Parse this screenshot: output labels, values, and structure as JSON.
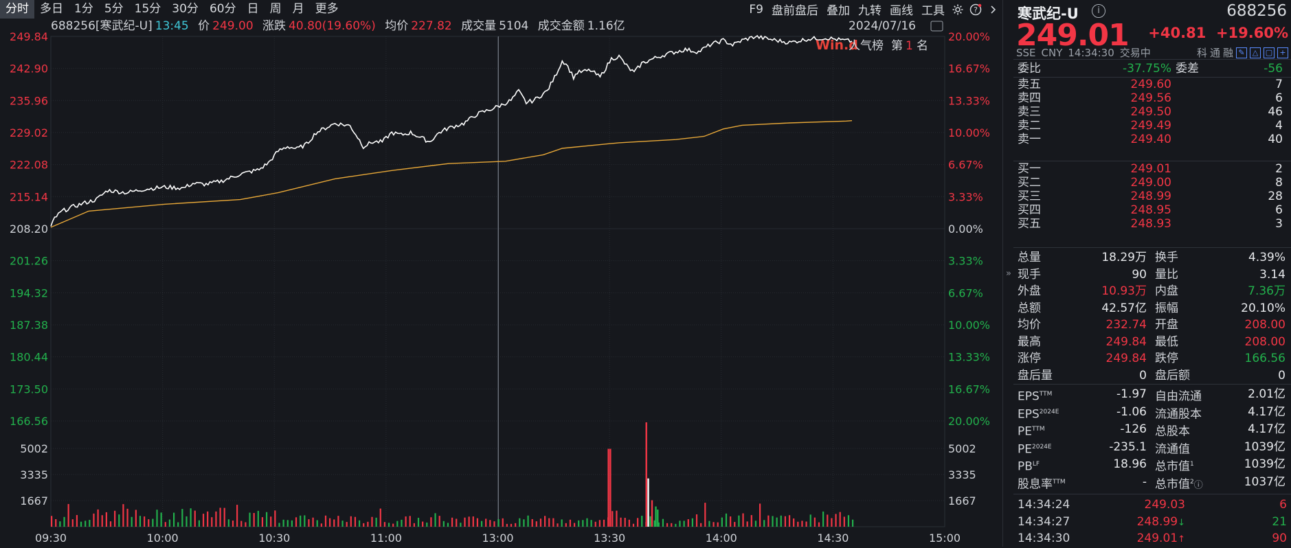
{
  "colors": {
    "up": "#f23645",
    "down": "#22b14c",
    "price_line": "#ffffff",
    "avg_line": "#e8a838",
    "grid": "#262a31",
    "bg": "#16181d"
  },
  "toolbar": {
    "tabs": [
      "分时",
      "多日",
      "1分",
      "5分",
      "15分",
      "30分",
      "60分",
      "日",
      "周",
      "月",
      "更多"
    ],
    "active_tab": "分时",
    "tools": [
      "F9",
      "盘前盘后",
      "叠加",
      "九转",
      "画线",
      "工具"
    ],
    "icons": [
      "gear-icon",
      "help-icon",
      "chevron-right-icon"
    ]
  },
  "info_bar": {
    "code_name": "688256[寒武纪-U]",
    "time": "13:45",
    "price_label": "价",
    "price": "249.00",
    "change_label": "涨跌",
    "change": "40.80(19.60%)",
    "avg_label": "均价",
    "avg": "227.82",
    "vol_label": "成交量",
    "vol": "5104",
    "amount_label": "成交金额",
    "amount": "1.16亿",
    "date": "2024/07/16"
  },
  "chart_data": {
    "type": "line",
    "prev_close": 208.2,
    "price_axis": [
      "249.84",
      "242.90",
      "235.96",
      "229.02",
      "222.08",
      "215.14",
      "208.20",
      "201.26",
      "194.32",
      "187.38",
      "180.44",
      "173.50",
      "166.56"
    ],
    "pct_axis": [
      "20.00%",
      "16.67%",
      "13.33%",
      "10.00%",
      "6.67%",
      "3.33%",
      "0.00%",
      "3.33%",
      "6.67%",
      "10.00%",
      "13.33%",
      "16.67%",
      "20.00%"
    ],
    "volume_axis": [
      "5002",
      "3335",
      "1667"
    ],
    "time_axis": [
      "09:30",
      "10:00",
      "10:30",
      "11:00",
      "13:00",
      "13:30",
      "14:00",
      "14:30",
      "15:00"
    ],
    "crosshair_time": "13:00",
    "popularity_badge": {
      "logo": "Win.d",
      "label": "人气榜",
      "rank_prefix": "第",
      "rank": "1",
      "rank_suffix": "名"
    },
    "price_series": [
      [
        0,
        208.5
      ],
      [
        2,
        210.5
      ],
      [
        6,
        212
      ],
      [
        12,
        213
      ],
      [
        18,
        213.8
      ],
      [
        24,
        214.5
      ],
      [
        30,
        216.5
      ],
      [
        40,
        216
      ],
      [
        50,
        216.8
      ],
      [
        60,
        217.2
      ],
      [
        70,
        217
      ],
      [
        75,
        218
      ],
      [
        82,
        217.8
      ],
      [
        90,
        218.5
      ],
      [
        100,
        220
      ],
      [
        110,
        221
      ],
      [
        115,
        222.5
      ],
      [
        120,
        225
      ],
      [
        125,
        226
      ],
      [
        130,
        225.5
      ],
      [
        135,
        226.5
      ],
      [
        140,
        229
      ],
      [
        150,
        231
      ],
      [
        158,
        230.5
      ],
      [
        162,
        228
      ],
      [
        165,
        226
      ],
      [
        170,
        227
      ],
      [
        175,
        227
      ],
      [
        180,
        229
      ],
      [
        185,
        228.5
      ],
      [
        190,
        229
      ],
      [
        195,
        228
      ],
      [
        200,
        227
      ],
      [
        205,
        229
      ],
      [
        210,
        230
      ],
      [
        218,
        231
      ],
      [
        225,
        233
      ],
      [
        232,
        234
      ],
      [
        238,
        235
      ],
      [
        243,
        236
      ],
      [
        247,
        238
      ],
      [
        251,
        235.5
      ],
      [
        255,
        236
      ],
      [
        262,
        238
      ],
      [
        266,
        241
      ],
      [
        270,
        244.5
      ],
      [
        272,
        244
      ],
      [
        276,
        241
      ],
      [
        278,
        242
      ],
      [
        285,
        242.5
      ],
      [
        290,
        241
      ],
      [
        296,
        245
      ],
      [
        300,
        245.5
      ],
      [
        305,
        243
      ],
      [
        308,
        242
      ],
      [
        312,
        244
      ],
      [
        318,
        245
      ],
      [
        325,
        246
      ],
      [
        335,
        247
      ],
      [
        342,
        246.5
      ],
      [
        348,
        248
      ],
      [
        355,
        249
      ],
      [
        360,
        248
      ],
      [
        365,
        249
      ],
      [
        372,
        249.8
      ],
      [
        380,
        249.2
      ],
      [
        390,
        248.5
      ],
      [
        400,
        249.3
      ],
      [
        410,
        249.5
      ],
      [
        418,
        249
      ],
      [
        423,
        248.8
      ]
    ],
    "avg_series": [
      [
        0,
        208.5
      ],
      [
        20,
        212
      ],
      [
        60,
        213.5
      ],
      [
        100,
        214.5
      ],
      [
        120,
        216
      ],
      [
        150,
        219
      ],
      [
        180,
        220.8
      ],
      [
        210,
        222.3
      ],
      [
        240,
        222.8
      ],
      [
        260,
        224.2
      ],
      [
        270,
        225.6
      ],
      [
        300,
        226.8
      ],
      [
        330,
        227.5
      ],
      [
        345,
        228.2
      ],
      [
        355,
        229.8
      ],
      [
        365,
        230.6
      ],
      [
        390,
        231.1
      ],
      [
        420,
        231.5
      ],
      [
        423,
        231.6
      ]
    ],
    "volume_series": [
      {
        "range": [
          0,
          120
        ],
        "max": 1400,
        "dir": "mixed"
      },
      {
        "range": [
          120,
          240
        ],
        "max": 900,
        "dir": "mixed"
      },
      {
        "range": [
          240,
          330
        ],
        "max": 900,
        "dir": "mixed"
      },
      {
        "range": [
          330,
          423
        ],
        "max": 1100,
        "dir": "mixed"
      }
    ],
    "volume_spikes": [
      {
        "min": 294,
        "value": 5000,
        "dir": "up"
      },
      {
        "min": 295,
        "value": 5000,
        "dir": "up"
      },
      {
        "min": 314,
        "value": 6700,
        "dir": "up"
      },
      {
        "min": 315,
        "value": 3100,
        "dir": "flat"
      },
      {
        "min": 317,
        "value": 1700,
        "dir": "up"
      },
      {
        "min": 319,
        "value": 1300,
        "dir": "down"
      },
      {
        "min": 320,
        "value": 1100,
        "dir": "down"
      }
    ]
  },
  "panel": {
    "name": "寒武纪-U",
    "info_icon": "ⓘ",
    "code": "688256",
    "price": "249.01",
    "change": "+40.81",
    "change_pct": "+19.60%",
    "exchange": "SSE",
    "currency": "CNY",
    "time": "14:34:30",
    "status": "交易中",
    "badges": [
      "科",
      "通",
      "融"
    ],
    "weibi": {
      "label": "委比",
      "value": "-37.75%",
      "label2": "委差",
      "value2": "-56"
    },
    "asks": [
      {
        "label": "卖五",
        "price": "249.60",
        "vol": "7"
      },
      {
        "label": "卖四",
        "price": "249.56",
        "vol": "6"
      },
      {
        "label": "卖三",
        "price": "249.50",
        "vol": "46"
      },
      {
        "label": "卖二",
        "price": "249.49",
        "vol": "4"
      },
      {
        "label": "卖一",
        "price": "249.40",
        "vol": "40"
      }
    ],
    "bids": [
      {
        "label": "买一",
        "price": "249.01",
        "vol": "2"
      },
      {
        "label": "买二",
        "price": "249.00",
        "vol": "8"
      },
      {
        "label": "买三",
        "price": "248.99",
        "vol": "28"
      },
      {
        "label": "买四",
        "price": "248.95",
        "vol": "6"
      },
      {
        "label": "买五",
        "price": "248.93",
        "vol": "3"
      }
    ],
    "stats": [
      [
        "总量",
        "18.29万",
        "white",
        "换手",
        "4.39%",
        "white"
      ],
      [
        "现手",
        "90",
        "white",
        "量比",
        "3.14",
        "white"
      ],
      [
        "外盘",
        "10.93万",
        "red",
        "内盘",
        "7.36万",
        "green"
      ],
      [
        "总额",
        "42.57亿",
        "white",
        "振幅",
        "20.10%",
        "white"
      ],
      [
        "均价",
        "232.74",
        "red",
        "开盘",
        "208.00",
        "red"
      ],
      [
        "最高",
        "249.84",
        "red",
        "最低",
        "208.00",
        "red"
      ],
      [
        "涨停",
        "249.84",
        "red",
        "跌停",
        "166.56",
        "green"
      ],
      [
        "盘后量",
        "0",
        "white",
        "盘后额",
        "0",
        "white"
      ]
    ],
    "fund": [
      [
        "EPS",
        "TTM",
        "-1.97",
        "自由流通",
        "",
        "2.01亿"
      ],
      [
        "EPS",
        "2024E",
        "-1.06",
        "流通股本",
        "",
        "4.17亿"
      ],
      [
        "PE",
        "TTM",
        "-126",
        "总股本",
        "",
        "4.17亿"
      ],
      [
        "PE",
        "2024E",
        "-235.1",
        "流通值",
        "",
        "1039亿"
      ],
      [
        "PB",
        "LF",
        "18.96",
        "总市值",
        "1",
        "1039亿"
      ],
      [
        "股息率",
        "TTM",
        "-",
        "总市值",
        "2",
        "1037亿"
      ]
    ],
    "ticks": [
      {
        "time": "14:34:24",
        "price": "249.03",
        "arrow": "",
        "vol": "6",
        "vol_color": "red"
      },
      {
        "time": "14:34:27",
        "price": "248.99",
        "arrow": "↓",
        "vol": "21",
        "vol_color": "green"
      },
      {
        "time": "14:34:30",
        "price": "249.01",
        "arrow": "↑",
        "vol": "90",
        "vol_color": "red"
      }
    ]
  }
}
